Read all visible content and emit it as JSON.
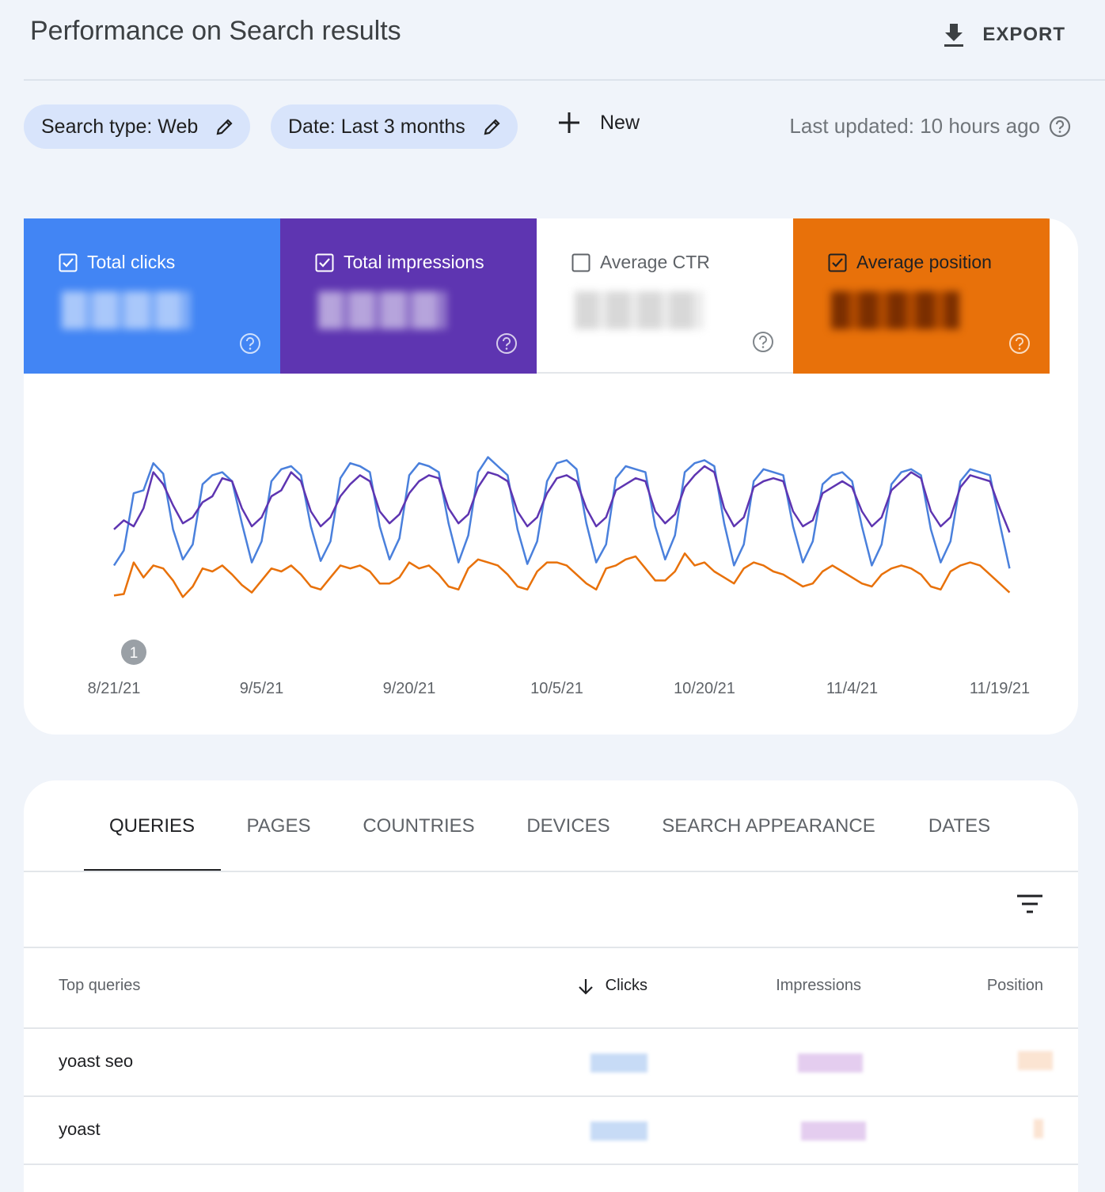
{
  "header": {
    "title": "Performance on Search results",
    "export": "EXPORT"
  },
  "filters": {
    "chips": [
      "Search type: Web",
      "Date: Last 3 months"
    ],
    "new": "New",
    "last_updated": "Last updated: 10 hours ago"
  },
  "metrics": [
    {
      "label": "Total clicks",
      "checked": true,
      "color": "#4285f4"
    },
    {
      "label": "Total impressions",
      "checked": true,
      "color": "#5e35b1"
    },
    {
      "label": "Average CTR",
      "checked": false,
      "color": "#ffffff"
    },
    {
      "label": "Average position",
      "checked": true,
      "color": "#e8710a"
    }
  ],
  "chart": {
    "type": "line",
    "annotation": "1",
    "xlim": [
      0,
      90
    ],
    "ylim": [
      0,
      100
    ],
    "xticks": [
      {
        "value": 0,
        "label": "8/21/21"
      },
      {
        "value": 15,
        "label": "9/5/21"
      },
      {
        "value": 30,
        "label": "9/20/21"
      },
      {
        "value": 45,
        "label": "10/5/21"
      },
      {
        "value": 60,
        "label": "10/20/21"
      },
      {
        "value": 75,
        "label": "11/4/21"
      },
      {
        "value": 90,
        "label": "11/19/21"
      }
    ],
    "series": [
      {
        "color": "#4a80dc",
        "values": [
          24,
          34,
          72,
          74,
          92,
          85,
          48,
          28,
          38,
          78,
          84,
          86,
          80,
          52,
          26,
          40,
          80,
          88,
          90,
          84,
          50,
          27,
          40,
          82,
          92,
          90,
          86,
          50,
          28,
          42,
          84,
          92,
          90,
          86,
          52,
          26,
          44,
          86,
          96,
          90,
          84,
          48,
          25,
          40,
          80,
          92,
          94,
          88,
          52,
          26,
          38,
          82,
          90,
          88,
          86,
          50,
          28,
          44,
          86,
          92,
          94,
          90,
          52,
          24,
          38,
          80,
          88,
          86,
          84,
          50,
          26,
          40,
          78,
          84,
          86,
          80,
          50,
          24,
          38,
          78,
          86,
          88,
          84,
          48,
          26,
          40,
          80,
          88,
          86,
          84,
          52,
          22
        ]
      },
      {
        "color": "#5e35b1",
        "values": [
          48,
          54,
          50,
          62,
          86,
          78,
          64,
          52,
          56,
          66,
          70,
          82,
          80,
          62,
          50,
          56,
          70,
          74,
          86,
          80,
          60,
          50,
          56,
          70,
          78,
          84,
          80,
          60,
          52,
          58,
          72,
          80,
          84,
          82,
          62,
          52,
          58,
          76,
          86,
          84,
          80,
          60,
          50,
          56,
          72,
          82,
          84,
          80,
          62,
          50,
          56,
          74,
          78,
          82,
          80,
          60,
          52,
          58,
          76,
          84,
          90,
          86,
          62,
          50,
          56,
          76,
          80,
          82,
          80,
          60,
          50,
          54,
          72,
          76,
          80,
          76,
          60,
          50,
          56,
          74,
          80,
          86,
          82,
          60,
          50,
          56,
          76,
          84,
          82,
          80,
          62,
          46
        ]
      },
      {
        "color": "#e8710a",
        "values": [
          4,
          5,
          26,
          16,
          24,
          22,
          14,
          3,
          10,
          22,
          20,
          24,
          18,
          11,
          6,
          14,
          22,
          20,
          24,
          18,
          10,
          8,
          16,
          24,
          22,
          24,
          20,
          12,
          12,
          16,
          26,
          22,
          24,
          18,
          10,
          8,
          22,
          28,
          26,
          24,
          18,
          10,
          8,
          20,
          26,
          26,
          24,
          18,
          12,
          8,
          22,
          24,
          28,
          30,
          22,
          14,
          14,
          20,
          32,
          24,
          26,
          20,
          16,
          12,
          22,
          26,
          24,
          20,
          18,
          14,
          10,
          12,
          20,
          24,
          20,
          16,
          12,
          10,
          18,
          22,
          24,
          22,
          18,
          10,
          8,
          20,
          24,
          26,
          24,
          18,
          12,
          6
        ]
      }
    ]
  },
  "tabs": {
    "items": [
      "QUERIES",
      "PAGES",
      "COUNTRIES",
      "DEVICES",
      "SEARCH APPEARANCE",
      "DATES"
    ],
    "active": 0
  },
  "table": {
    "columns": [
      "Top queries",
      "Clicks",
      "Impressions",
      "Position"
    ],
    "rows": [
      "yoast seo",
      "yoast"
    ]
  }
}
